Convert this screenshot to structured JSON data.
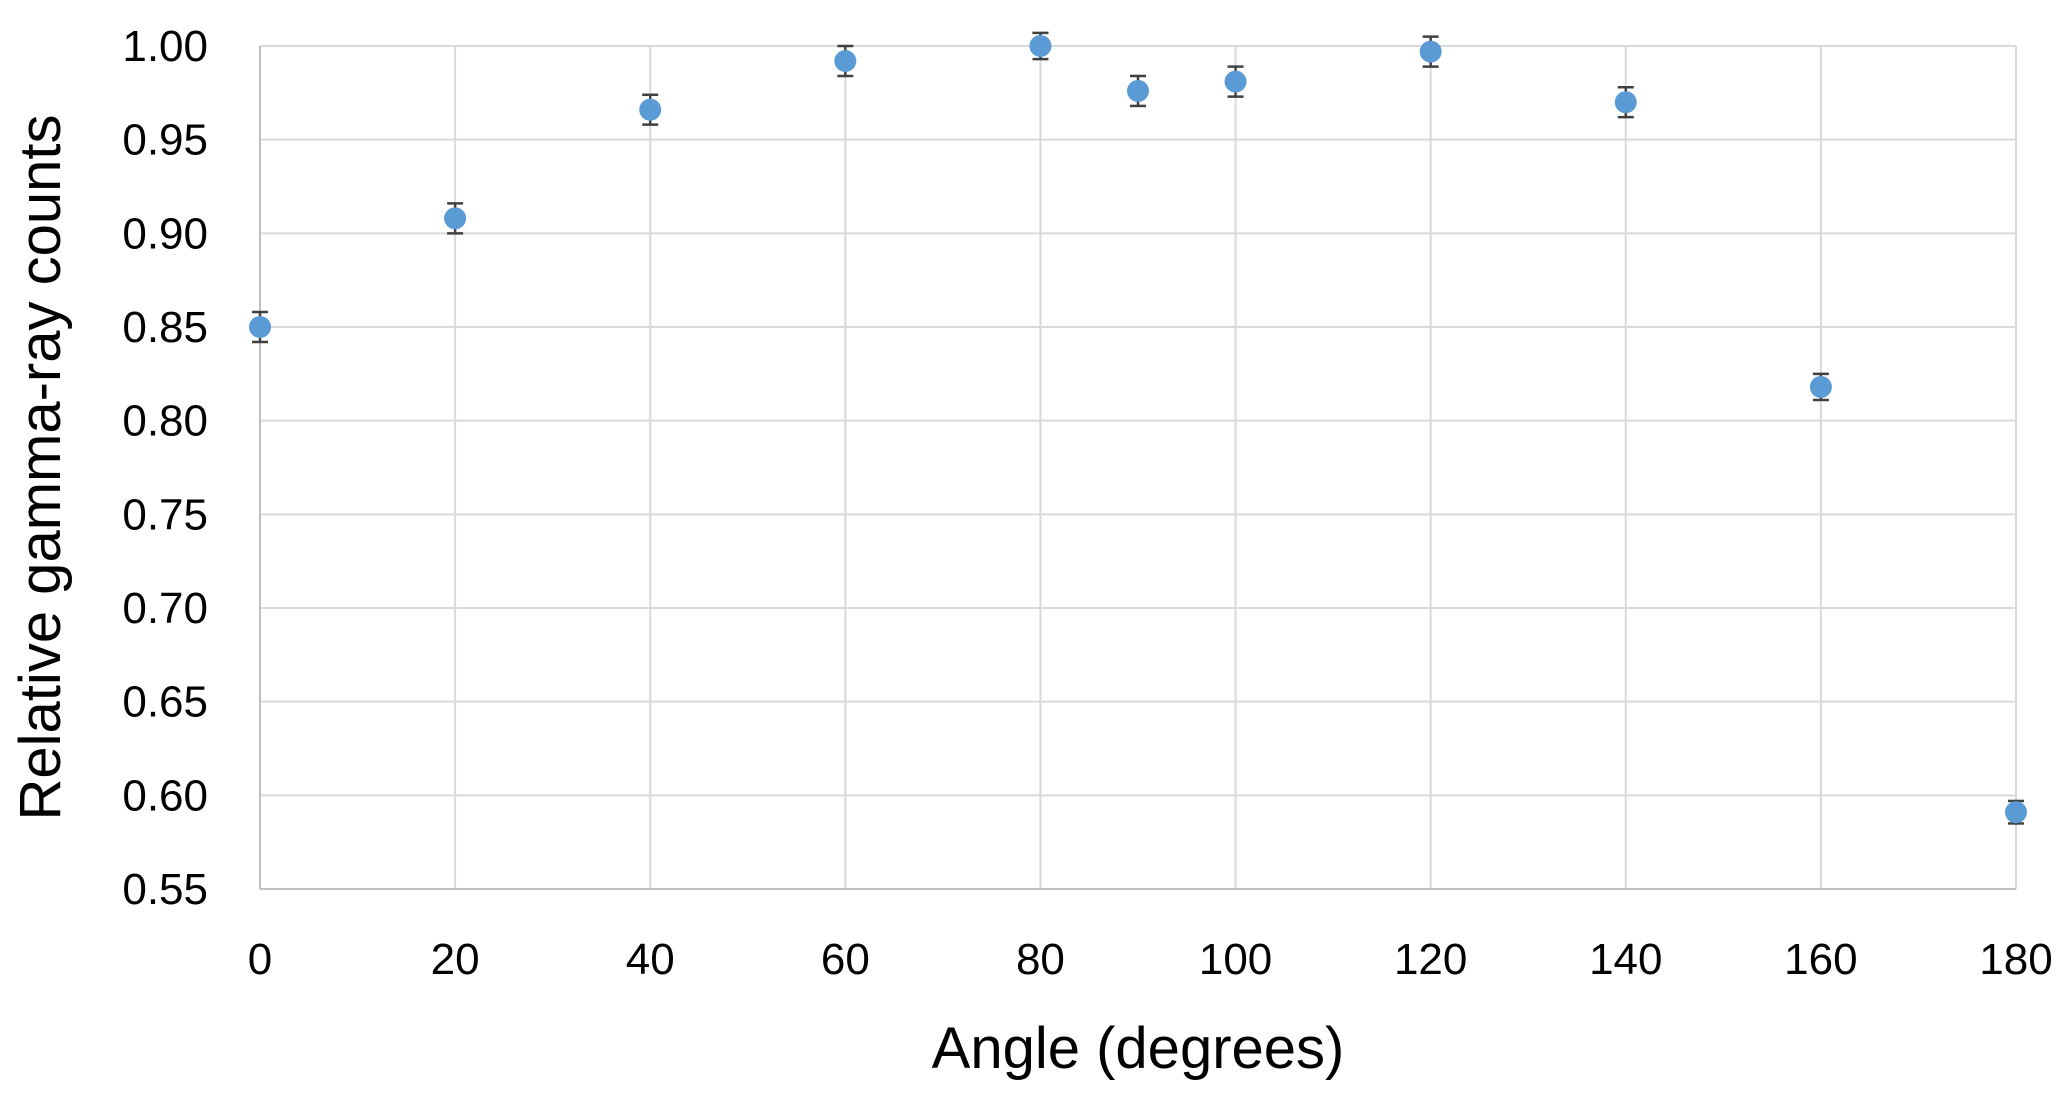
{
  "chart_data": {
    "type": "scatter",
    "xlabel": "Angle (degrees)",
    "ylabel": "Relative gamma-ray counts",
    "xlim": [
      0,
      180
    ],
    "ylim": [
      0.55,
      1.0
    ],
    "x_ticks": [
      "0",
      "20",
      "40",
      "60",
      "80",
      "100",
      "120",
      "140",
      "160",
      "180"
    ],
    "x_tick_values": [
      0,
      20,
      40,
      60,
      80,
      100,
      120,
      140,
      160,
      180
    ],
    "y_ticks": [
      "0.55",
      "0.60",
      "0.65",
      "0.70",
      "0.75",
      "0.80",
      "0.85",
      "0.90",
      "0.95",
      "1.00"
    ],
    "y_tick_values": [
      0.55,
      0.6,
      0.65,
      0.7,
      0.75,
      0.8,
      0.85,
      0.9,
      0.95,
      1.0
    ],
    "grid": true,
    "series": [
      {
        "marker_color": "#5b9bd5",
        "error_bar_color": "#404040",
        "points": [
          {
            "x": 0,
            "y": 0.85,
            "err": 0.008
          },
          {
            "x": 20,
            "y": 0.908,
            "err": 0.008
          },
          {
            "x": 40,
            "y": 0.966,
            "err": 0.008
          },
          {
            "x": 60,
            "y": 0.992,
            "err": 0.008
          },
          {
            "x": 80,
            "y": 1.0,
            "err": 0.007
          },
          {
            "x": 90,
            "y": 0.976,
            "err": 0.008
          },
          {
            "x": 100,
            "y": 0.981,
            "err": 0.008
          },
          {
            "x": 120,
            "y": 0.997,
            "err": 0.008
          },
          {
            "x": 140,
            "y": 0.97,
            "err": 0.008
          },
          {
            "x": 160,
            "y": 0.818,
            "err": 0.007
          },
          {
            "x": 180,
            "y": 0.591,
            "err": 0.006
          }
        ]
      }
    ]
  }
}
